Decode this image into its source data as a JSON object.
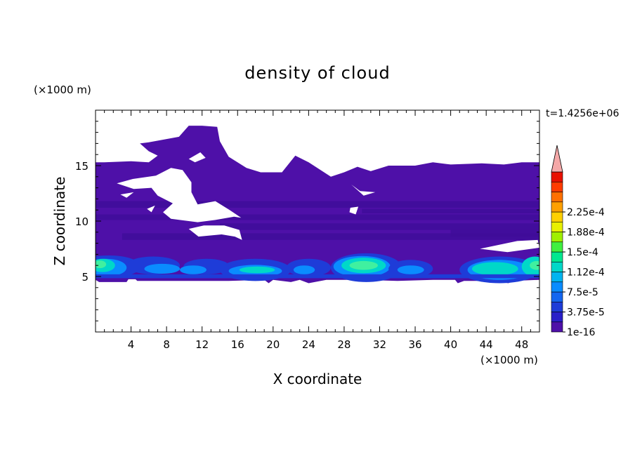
{
  "chart_data": {
    "type": "heatmap",
    "title": "density of cloud",
    "xlabel": "X coordinate",
    "ylabel": "Z coordinate",
    "x_unit": "(×1000 m)",
    "y_unit": "(×1000 m)",
    "time_label": "t=1.4256e+06",
    "xlim": [
      0,
      50
    ],
    "ylim": [
      0,
      20
    ],
    "x_ticks": [
      4,
      8,
      12,
      16,
      20,
      24,
      28,
      32,
      36,
      40,
      44,
      48
    ],
    "y_ticks": [
      5,
      10,
      15
    ],
    "colorbar": {
      "labels": [
        "1e-16",
        "3.75e-5",
        "7.5e-5",
        "1.12e-4",
        "1.5e-4",
        "1.88e-4",
        "2.25e-4"
      ],
      "colors": [
        "#4e10a8",
        "#2a1fc8",
        "#1e3cd8",
        "#1466f0",
        "#0a8cff",
        "#00b4f0",
        "#00d8c8",
        "#00e890",
        "#40f040",
        "#a0f000",
        "#e8f000",
        "#ffd000",
        "#ffa000",
        "#ff7000",
        "#ff3c00",
        "#e81000"
      ],
      "extend_color": "#f4a8a8"
    },
    "regions": [
      {
        "level": 0,
        "description": "cloud layer",
        "x_range": [
          0,
          50
        ],
        "z_range": [
          4.6,
          19
        ]
      },
      {
        "level": 6,
        "description": "dense band near z=6",
        "x_range": [
          0,
          50
        ],
        "z_range": [
          5,
          7
        ]
      }
    ]
  },
  "colors": {
    "band_low": "#1e3cd8",
    "band_mid": "#0a8cff",
    "band_high": "#00d8c8",
    "band_peak": "#40f0a0",
    "cloud": "#4e10a8",
    "cloud_dark": "#3e0c98"
  }
}
